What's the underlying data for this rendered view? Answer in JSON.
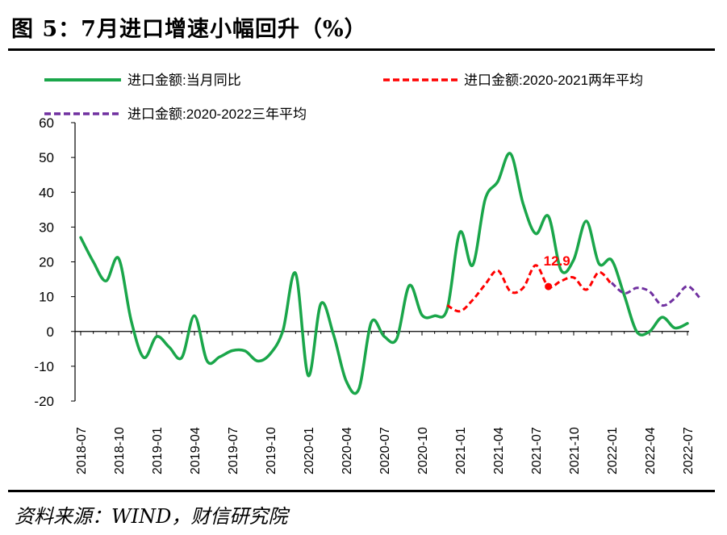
{
  "title": "图 5：7月进口增速小幅回升（%）",
  "source": "资料来源：WIND，财信研究院",
  "chart_data": {
    "type": "line",
    "ylim": [
      -20,
      60
    ],
    "yticks": [
      -20,
      -10,
      0,
      10,
      20,
      30,
      40,
      50,
      60
    ],
    "xlabels": [
      "2018-07",
      "2018-10",
      "2019-01",
      "2019-04",
      "2019-07",
      "2019-10",
      "2020-01",
      "2020-04",
      "2020-07",
      "2020-10",
      "2021-01",
      "2021-04",
      "2021-07",
      "2021-10",
      "2022-01",
      "2022-04",
      "2022-07"
    ],
    "series": [
      {
        "name": "进口金额:当月同比",
        "color": "#1aa64a",
        "dash": "solid",
        "points": [
          [
            "2018-07",
            27
          ],
          [
            "2018-08",
            20
          ],
          [
            "2018-09",
            14.5
          ],
          [
            "2018-10",
            21
          ],
          [
            "2018-11",
            3
          ],
          [
            "2018-12",
            -7.5
          ],
          [
            "2019-01",
            -1.5
          ],
          [
            "2019-02",
            -4.5
          ],
          [
            "2019-03",
            -7.5
          ],
          [
            "2019-04",
            4.5
          ],
          [
            "2019-05",
            -8.5
          ],
          [
            "2019-06",
            -7.3
          ],
          [
            "2019-07",
            -5.5
          ],
          [
            "2019-08",
            -5.6
          ],
          [
            "2019-09",
            -8.5
          ],
          [
            "2019-10",
            -6.4
          ],
          [
            "2019-11",
            0.3
          ],
          [
            "2019-12",
            16.7
          ],
          [
            "2020-01",
            -12.7
          ],
          [
            "2020-02",
            8
          ],
          [
            "2020-03",
            -0.9
          ],
          [
            "2020-04",
            -14.2
          ],
          [
            "2020-05",
            -16.6
          ],
          [
            "2020-06",
            2.7
          ],
          [
            "2020-07",
            -1.4
          ],
          [
            "2020-08",
            -2.1
          ],
          [
            "2020-09",
            13.2
          ],
          [
            "2020-10",
            4.7
          ],
          [
            "2020-11",
            4.5
          ],
          [
            "2020-12",
            6.5
          ],
          [
            "2021-01",
            28.5
          ],
          [
            "2021-02",
            19
          ],
          [
            "2021-03",
            38
          ],
          [
            "2021-04",
            43.1
          ],
          [
            "2021-05",
            51.1
          ],
          [
            "2021-06",
            36.7
          ],
          [
            "2021-07",
            28.1
          ],
          [
            "2021-08",
            33.1
          ],
          [
            "2021-09",
            17.6
          ],
          [
            "2021-10",
            20.6
          ],
          [
            "2021-11",
            31.7
          ],
          [
            "2021-12",
            19.5
          ],
          [
            "2022-01",
            20.5
          ],
          [
            "2022-02",
            10.4
          ],
          [
            "2022-03",
            -0.1
          ],
          [
            "2022-04",
            0
          ],
          [
            "2022-05",
            4.1
          ],
          [
            "2022-06",
            1
          ],
          [
            "2022-07",
            2.3
          ]
        ]
      },
      {
        "name": "进口金额:2020-2021两年平均",
        "color": "#ff0000",
        "dash": "dashed",
        "points": [
          [
            "2020-12",
            7.5
          ],
          [
            "2021-01",
            5.8
          ],
          [
            "2021-02",
            9
          ],
          [
            "2021-03",
            13.5
          ],
          [
            "2021-04",
            17.5
          ],
          [
            "2021-05",
            11.5
          ],
          [
            "2021-06",
            12.5
          ],
          [
            "2021-07",
            19
          ],
          [
            "2021-08",
            12.9
          ],
          [
            "2021-09",
            14.5
          ],
          [
            "2021-10",
            15.5
          ],
          [
            "2021-11",
            12
          ],
          [
            "2021-12",
            17
          ],
          [
            "2022-01",
            13.5
          ]
        ]
      },
      {
        "name": "进口金额:2020-2022三年平均",
        "color": "#7030a0",
        "dash": "dashed",
        "points": [
          [
            "2022-01",
            14
          ],
          [
            "2022-02",
            11
          ],
          [
            "2022-03",
            12.5
          ],
          [
            "2022-04",
            11.5
          ],
          [
            "2022-05",
            7.5
          ],
          [
            "2022-06",
            9.5
          ],
          [
            "2022-07",
            13
          ],
          [
            "2022-08",
            9.5
          ]
        ]
      }
    ],
    "annotation": {
      "series": 1,
      "x": "2021-08",
      "y": 12.9,
      "label": "12.9",
      "color": "#ff0000"
    }
  }
}
